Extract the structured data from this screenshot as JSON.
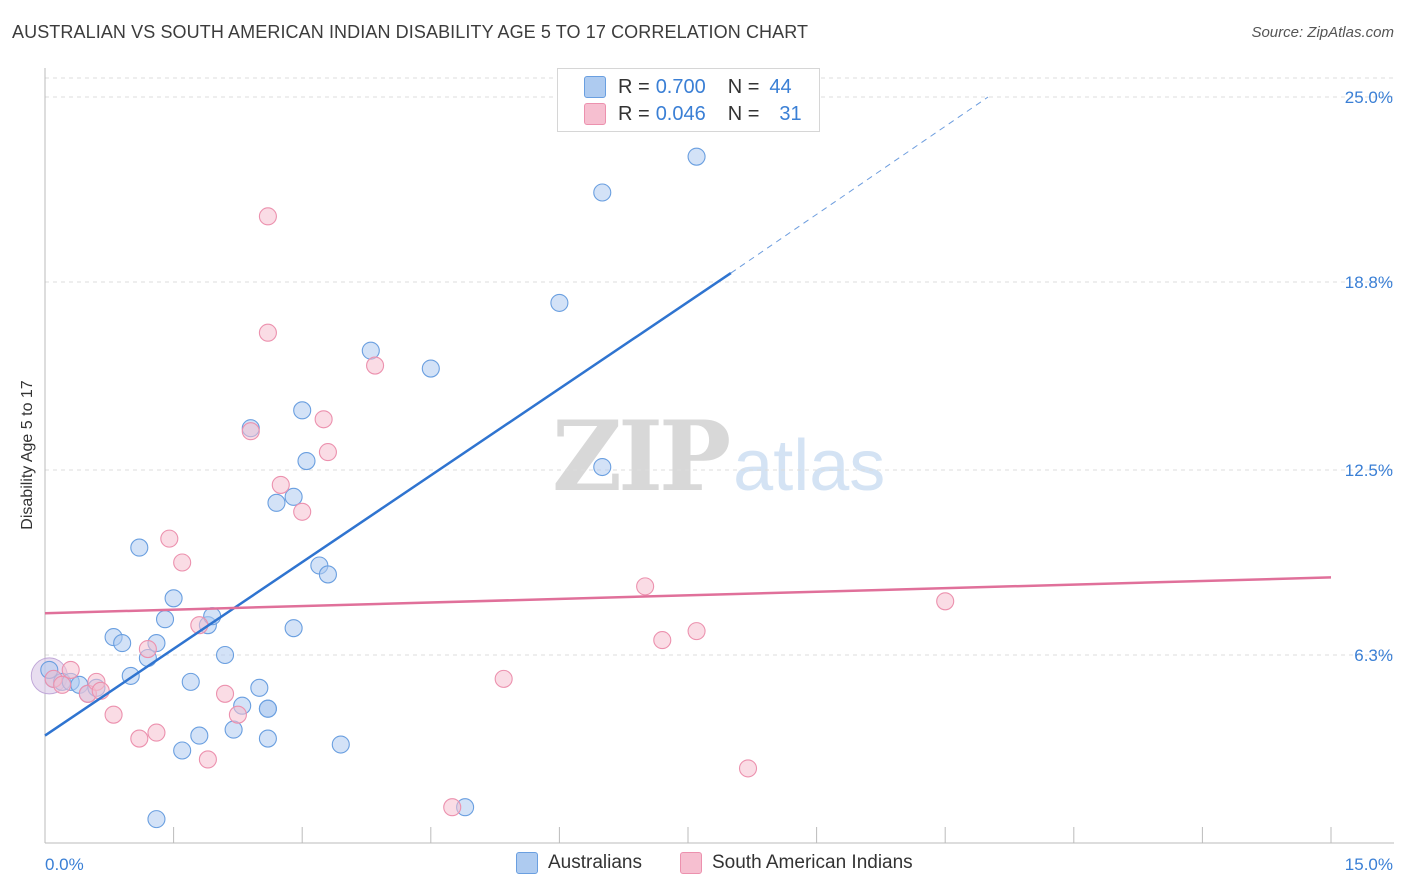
{
  "header": {
    "title": "AUSTRALIAN VS SOUTH AMERICAN INDIAN DISABILITY AGE 5 TO 17 CORRELATION CHART",
    "source": "Source: ZipAtlas.com"
  },
  "watermark": {
    "zip": "ZIP",
    "atlas": "atlas"
  },
  "legend": {
    "rows": [
      {
        "r_label": "R = ",
        "r_value": "0.700",
        "n_label": "N = ",
        "n_value": "44",
        "color": "#aecbf0"
      },
      {
        "r_label": "R = ",
        "r_value": "0.046",
        "n_label": "N = ",
        "n_value": "31",
        "color": "#f6bfd0"
      }
    ]
  },
  "bottom_legend": {
    "items": [
      {
        "label": "Australians",
        "color": "#aecbf0"
      },
      {
        "label": "South American Indians",
        "color": "#f6bfd0"
      }
    ]
  },
  "chart_data": {
    "type": "scatter",
    "title": "AUSTRALIAN VS SOUTH AMERICAN INDIAN DISABILITY AGE 5 TO 17 CORRELATION CHART",
    "xlabel": "",
    "ylabel": "Disability Age 5 to 17",
    "xlim": [
      0,
      15
    ],
    "ylim": [
      0,
      25
    ],
    "x_tick_labels": [
      "0.0%",
      "15.0%"
    ],
    "y_ticks": [
      6.3,
      12.5,
      18.8,
      25.0
    ],
    "y_tick_labels": [
      "6.3%",
      "12.5%",
      "18.8%",
      "25.0%"
    ],
    "grid": "horizontal dashed",
    "legend_position": "top-center",
    "series": [
      {
        "name": "Australians",
        "color": "#6a9fe0",
        "fill": "#aecbf0",
        "trend": {
          "x": [
            0,
            8
          ],
          "y": [
            3.6,
            19.1
          ],
          "dashed_to": [
            11,
            25.0
          ],
          "color": "#2f74d0"
        },
        "points": [
          [
            0.1,
            5.5
          ],
          [
            0.2,
            5.4
          ],
          [
            0.3,
            5.4
          ],
          [
            0.4,
            5.3
          ],
          [
            0.5,
            5.0
          ],
          [
            0.6,
            5.2
          ],
          [
            0.8,
            6.9
          ],
          [
            0.9,
            6.7
          ],
          [
            1.0,
            5.6
          ],
          [
            1.1,
            9.9
          ],
          [
            1.2,
            6.2
          ],
          [
            1.3,
            0.8
          ],
          [
            1.3,
            6.7
          ],
          [
            1.4,
            7.5
          ],
          [
            1.5,
            8.2
          ],
          [
            1.6,
            3.1
          ],
          [
            1.7,
            5.4
          ],
          [
            1.8,
            3.6
          ],
          [
            1.9,
            7.3
          ],
          [
            1.95,
            7.6
          ],
          [
            2.1,
            6.3
          ],
          [
            2.2,
            3.8
          ],
          [
            2.3,
            4.6
          ],
          [
            2.4,
            13.9
          ],
          [
            2.5,
            5.2
          ],
          [
            2.6,
            4.5
          ],
          [
            2.6,
            4.5
          ],
          [
            2.6,
            3.5
          ],
          [
            2.7,
            11.4
          ],
          [
            2.9,
            11.6
          ],
          [
            2.9,
            7.2
          ],
          [
            3.0,
            14.5
          ],
          [
            3.05,
            12.8
          ],
          [
            3.2,
            9.3
          ],
          [
            3.3,
            9.0
          ],
          [
            3.45,
            3.3
          ],
          [
            3.8,
            16.5
          ],
          [
            4.5,
            15.9
          ],
          [
            4.9,
            1.2
          ],
          [
            6.0,
            18.1
          ],
          [
            6.5,
            21.8
          ],
          [
            6.5,
            12.6
          ],
          [
            7.6,
            23.0
          ],
          [
            0.05,
            5.8
          ]
        ]
      },
      {
        "name": "South American Indians",
        "color": "#ec91ae",
        "fill": "#f6bfd0",
        "trend": {
          "x": [
            0,
            15
          ],
          "y": [
            7.7,
            8.9
          ],
          "color": "#e0709a"
        },
        "points": [
          [
            0.1,
            5.5
          ],
          [
            0.2,
            5.3
          ],
          [
            0.3,
            5.8
          ],
          [
            0.5,
            5.0
          ],
          [
            0.6,
            5.4
          ],
          [
            0.65,
            5.1
          ],
          [
            0.8,
            4.3
          ],
          [
            1.1,
            3.5
          ],
          [
            1.2,
            6.5
          ],
          [
            1.3,
            3.7
          ],
          [
            1.45,
            10.2
          ],
          [
            1.6,
            9.4
          ],
          [
            1.8,
            7.3
          ],
          [
            1.9,
            2.8
          ],
          [
            2.1,
            5.0
          ],
          [
            2.25,
            4.3
          ],
          [
            2.4,
            13.8
          ],
          [
            2.6,
            17.1
          ],
          [
            2.6,
            21.0
          ],
          [
            2.75,
            12.0
          ],
          [
            3.0,
            11.1
          ],
          [
            3.25,
            14.2
          ],
          [
            3.3,
            13.1
          ],
          [
            3.85,
            16.0
          ],
          [
            4.75,
            1.2
          ],
          [
            5.35,
            5.5
          ],
          [
            7.0,
            8.6
          ],
          [
            7.2,
            6.8
          ],
          [
            7.6,
            7.1
          ],
          [
            8.2,
            2.5
          ],
          [
            10.5,
            8.1
          ]
        ]
      }
    ]
  }
}
